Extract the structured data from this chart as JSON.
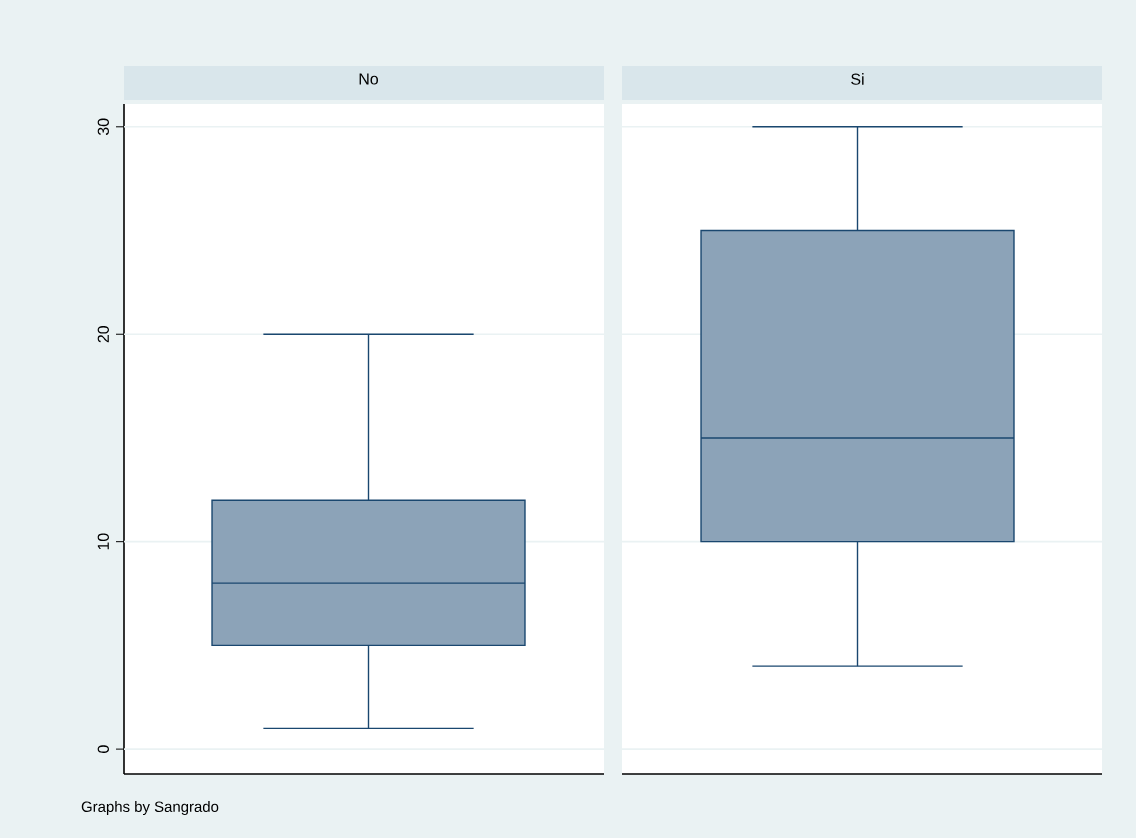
{
  "chart_data": {
    "type": "box",
    "categories": [
      "No",
      "Si"
    ],
    "boxes": [
      {
        "low": 1,
        "q1": 5,
        "median": 8,
        "q3": 12,
        "high": 20
      },
      {
        "low": 4,
        "q1": 10,
        "median": 15,
        "q3": 25,
        "high": 30
      }
    ],
    "color": "#8ca3b8",
    "ylim": [
      -1.2,
      31.1
    ],
    "yticks": [
      0,
      10,
      20,
      30
    ],
    "grid": "y",
    "tick_labels": "y",
    "annotations": [
      "Graphs by Sangrado"
    ]
  }
}
